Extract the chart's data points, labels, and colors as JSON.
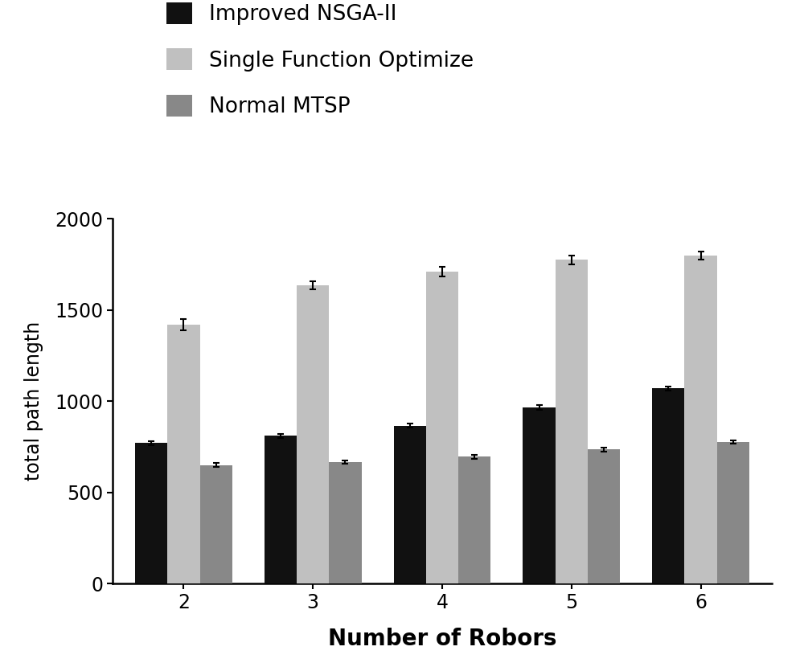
{
  "categories": [
    2,
    3,
    4,
    5,
    6
  ],
  "series": {
    "Improved NSGA-II": {
      "values": [
        770,
        810,
        865,
        965,
        1070
      ],
      "errors": [
        12,
        12,
        12,
        12,
        12
      ],
      "color": "#111111"
    },
    "Single Function Optimize": {
      "values": [
        1420,
        1635,
        1710,
        1775,
        1800
      ],
      "errors": [
        30,
        22,
        28,
        25,
        22
      ],
      "color": "#c0c0c0"
    },
    "Normal MTSP": {
      "values": [
        650,
        665,
        695,
        735,
        775
      ],
      "errors": [
        10,
        10,
        10,
        10,
        10
      ],
      "color": "#888888"
    }
  },
  "xlabel": "Number of Robors",
  "ylabel": "total path length",
  "ylim": [
    0,
    2000
  ],
  "yticks": [
    0,
    500,
    1000,
    1500,
    2000
  ],
  "bar_width": 0.25,
  "background_color": "#ffffff",
  "xlabel_fontsize": 20,
  "xlabel_fontweight": "bold",
  "ylabel_fontsize": 17,
  "tick_fontsize": 17,
  "legend_fontsize": 19,
  "legend_labelspacing": 1.1
}
